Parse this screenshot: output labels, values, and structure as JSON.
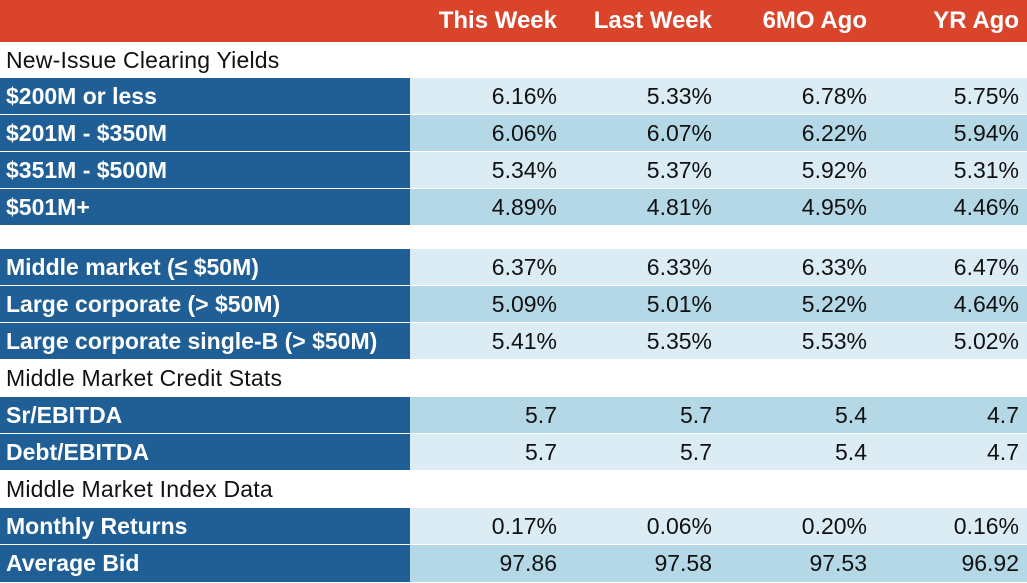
{
  "header": {
    "col1": "This Week",
    "col2": "Last Week",
    "col3": "6MO Ago",
    "col4": "YR Ago"
  },
  "section1": {
    "title": "New-Issue Clearing Yields"
  },
  "group1": [
    {
      "label": "$200M or less",
      "values": [
        "6.16%",
        "5.33%",
        "6.78%",
        "5.75%"
      ]
    },
    {
      "label": "$201M - $350M",
      "values": [
        "6.06%",
        "6.07%",
        "6.22%",
        "5.94%"
      ]
    },
    {
      "label": "$351M - $500M",
      "values": [
        "5.34%",
        "5.37%",
        "5.92%",
        "5.31%"
      ]
    },
    {
      "label": "$501M+",
      "values": [
        "4.89%",
        "4.81%",
        "4.95%",
        "4.46%"
      ]
    }
  ],
  "group2": [
    {
      "label": "Middle market (≤ $50M)",
      "values": [
        "6.37%",
        "6.33%",
        "6.33%",
        "6.47%"
      ]
    },
    {
      "label": "Large corporate (> $50M)",
      "values": [
        "5.09%",
        "5.01%",
        "5.22%",
        "4.64%"
      ]
    },
    {
      "label": "Large corporate single-B (> $50M)",
      "values": [
        "5.41%",
        "5.35%",
        "5.53%",
        "5.02%"
      ]
    }
  ],
  "section2": {
    "title": "Middle Market Credit Stats"
  },
  "group3": [
    {
      "label": "Sr/EBITDA",
      "values": [
        "5.7",
        "5.7",
        "5.4",
        "4.7"
      ]
    },
    {
      "label": "Debt/EBITDA",
      "values": [
        "5.7",
        "5.7",
        "5.4",
        "4.7"
      ]
    }
  ],
  "section3": {
    "title": "Middle Market Index Data"
  },
  "group4": [
    {
      "label": "Monthly Returns",
      "values": [
        "0.17%",
        "0.06%",
        "0.20%",
        "0.16%"
      ]
    },
    {
      "label": "Average Bid",
      "values": [
        "97.86",
        "97.58",
        "97.53",
        "96.92"
      ]
    }
  ]
}
